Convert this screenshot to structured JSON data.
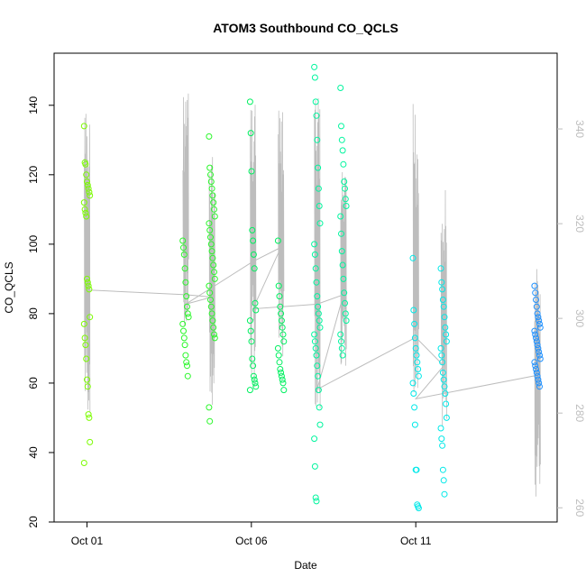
{
  "chart_data": {
    "type": "scatter",
    "title": "ATOM3 Southbound CO_QCLS",
    "xlabel": "Date",
    "ylabel": "CO_QCLS",
    "x_ticks": [
      "Oct 01",
      "Oct 06",
      "Oct 11"
    ],
    "x_tick_days": [
      1,
      6,
      11
    ],
    "xlim_days": [
      0.0,
      15.3
    ],
    "ylim": [
      20,
      155
    ],
    "y_ticks": [
      20,
      40,
      60,
      80,
      100,
      120,
      140
    ],
    "y2label": "",
    "y2lim": [
      257,
      356
    ],
    "y2_ticks": [
      260,
      280,
      300,
      320,
      340
    ],
    "y2_color": "#bdbdbd",
    "grid": false,
    "legend": "none",
    "point_style": "open-circle",
    "series": [
      {
        "color": "#7cfc00",
        "clusters": [
          {
            "day": 1.0,
            "points": [
              134,
              123.5,
              123,
              120,
              118,
              117,
              116,
              115,
              114,
              112,
              110,
              109,
              108,
              90,
              89,
              88,
              87,
              79,
              77,
              73,
              71,
              67,
              61,
              59,
              51,
              50,
              43,
              37
            ]
          }
        ]
      },
      {
        "color": "#2af72a",
        "clusters": [
          {
            "day": 4.0,
            "points": [
              101,
              99,
              97,
              93,
              89,
              85,
              82,
              80,
              79,
              77,
              75,
              73,
              71,
              68,
              66,
              65,
              62
            ]
          },
          {
            "day": 4.8,
            "points": [
              131,
              122,
              120,
              118,
              116,
              114,
              112,
              110,
              108,
              106,
              104,
              102,
              100,
              98,
              96,
              94,
              92,
              90,
              88,
              86,
              84,
              82,
              80,
              78,
              76,
              74,
              73,
              53,
              49
            ]
          }
        ]
      },
      {
        "color": "#00f060",
        "clusters": [
          {
            "day": 6.05,
            "points": [
              141,
              132,
              121,
              104,
              101,
              97,
              93,
              83,
              81,
              78,
              75,
              72,
              67,
              65,
              62,
              61,
              60,
              59,
              58
            ]
          },
          {
            "day": 6.9,
            "points": [
              101,
              88,
              85,
              82,
              80,
              78,
              76,
              74,
              72,
              70,
              68,
              66,
              64,
              63,
              62,
              61,
              60,
              58
            ]
          }
        ]
      },
      {
        "color": "#00f59e",
        "clusters": [
          {
            "day": 8.0,
            "points": [
              151,
              148,
              141,
              137,
              130,
              122,
              116,
              111,
              106,
              100,
              97,
              93,
              89,
              85,
              82,
              80,
              78,
              76,
              74,
              72,
              70,
              68,
              65,
              62,
              58,
              53,
              48,
              44,
              36,
              27,
              26
            ]
          },
          {
            "day": 8.8,
            "points": [
              145,
              134,
              130,
              127,
              123,
              118,
              116,
              113,
              111,
              108,
              103,
              98,
              94,
              90,
              86,
              83,
              80,
              78,
              74,
              72,
              70,
              68
            ]
          }
        ]
      },
      {
        "color": "#00e8e8",
        "clusters": [
          {
            "day": 11.0,
            "points": [
              96,
              81,
              77,
              73,
              70,
              68,
              66,
              64,
              62,
              60,
              57,
              53,
              48,
              35,
              35,
              25,
              24.5,
              24
            ]
          },
          {
            "day": 11.85,
            "points": [
              93,
              89,
              87,
              84,
              82,
              79,
              76,
              74,
              72,
              70,
              68,
              66,
              63,
              61,
              59,
              57,
              54,
              50,
              47,
              44,
              42,
              35,
              32,
              28
            ]
          }
        ]
      },
      {
        "color": "#1e90ff",
        "clusters": [
          {
            "day": 14.7,
            "points": [
              88,
              86,
              84,
              82,
              80,
              79,
              78,
              77,
              76,
              75,
              74,
              73,
              72,
              71,
              70,
              69,
              68,
              67,
              66,
              65,
              64,
              63,
              62,
              61,
              60,
              59
            ]
          }
        ]
      }
    ],
    "altitude_trace": {
      "color": "#bdbdbd",
      "axis": "right",
      "connector_path": [
        {
          "day": 1.0,
          "value": 306
        },
        {
          "day": 4.0,
          "value": 305
        },
        {
          "day": 4.8,
          "value": 304.5
        },
        {
          "day": 4.0,
          "value": 303
        },
        {
          "day": 6.05,
          "value": 312
        },
        {
          "day": 6.9,
          "value": 315
        },
        {
          "day": 6.05,
          "value": 302
        },
        {
          "day": 8.0,
          "value": 303
        },
        {
          "day": 8.8,
          "value": 305
        },
        {
          "day": 8.0,
          "value": 285
        },
        {
          "day": 11.0,
          "value": 296
        },
        {
          "day": 11.85,
          "value": 290
        },
        {
          "day": 11.0,
          "value": 283
        },
        {
          "day": 14.7,
          "value": 288
        }
      ],
      "spikes": [
        {
          "day": 1.0,
          "low": 279,
          "high": 345
        },
        {
          "day": 4.0,
          "low": 295,
          "high": 349
        },
        {
          "day": 4.8,
          "low": 280,
          "high": 335
        },
        {
          "day": 6.05,
          "low": 285,
          "high": 350
        },
        {
          "day": 6.9,
          "low": 289,
          "high": 344
        },
        {
          "day": 8.0,
          "low": 281,
          "high": 348
        },
        {
          "day": 8.8,
          "low": 289,
          "high": 331
        },
        {
          "day": 11.0,
          "low": 275,
          "high": 346
        },
        {
          "day": 11.85,
          "low": 276,
          "high": 328
        },
        {
          "day": 14.7,
          "low": 262,
          "high": 311
        }
      ]
    }
  }
}
